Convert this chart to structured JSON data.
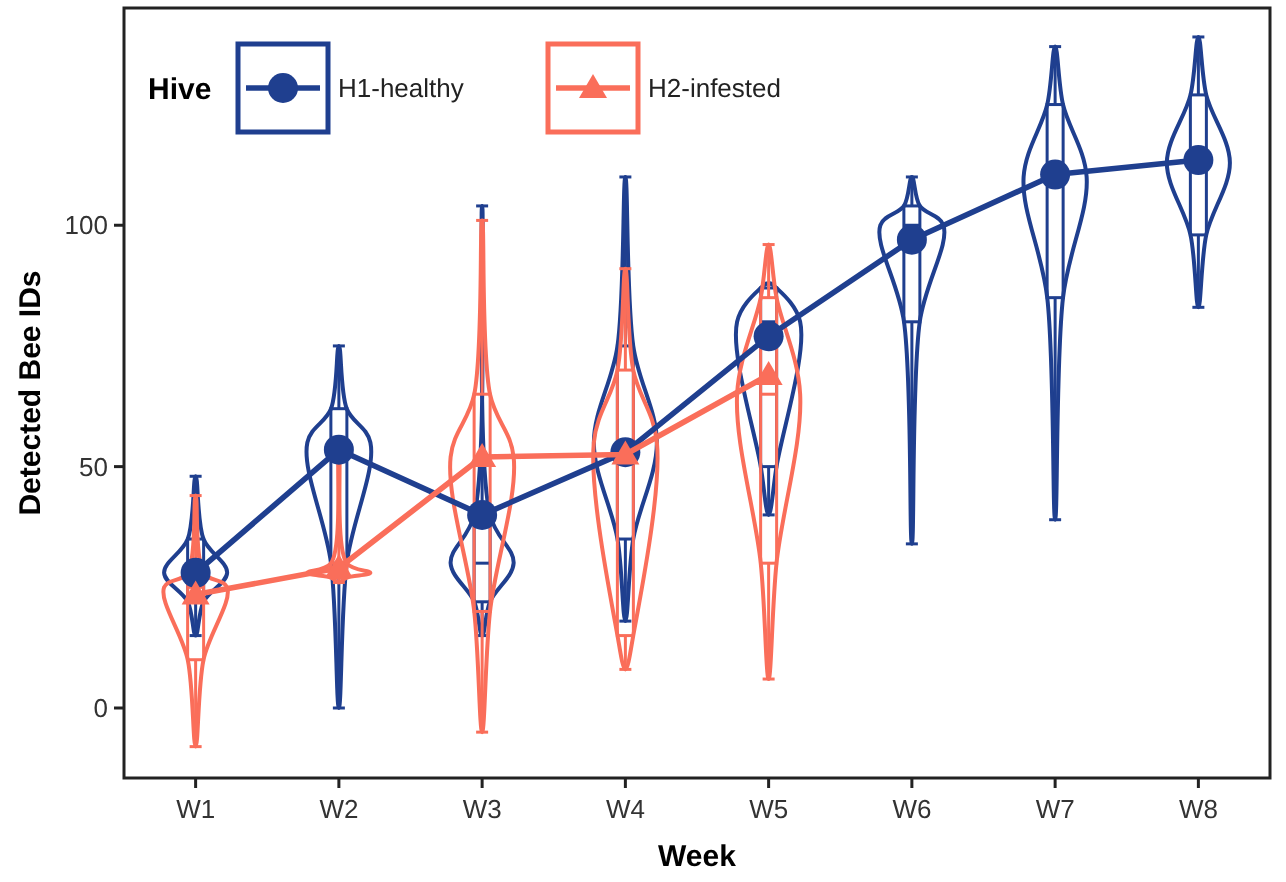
{
  "chart_data": {
    "type": "box",
    "xlabel": "Week",
    "ylabel": "Detected Bee IDs",
    "legend_title": "Hive",
    "legend": "top left",
    "grid": false,
    "categories": [
      "W1",
      "W2",
      "W3",
      "W4",
      "W5",
      "W6",
      "W7",
      "W8"
    ],
    "ylim": [
      -14.5,
      145
    ],
    "yticks": [
      0,
      50,
      100
    ],
    "series": [
      {
        "color": "#1f3f8f",
        "boxes": [
          {
            "low": 15,
            "q1": 22,
            "median": 28,
            "q3": 35,
            "high": 48
          },
          {
            "low": 0,
            "q1": 30,
            "median": 55,
            "q3": 62,
            "high": 75
          },
          {
            "low": 15,
            "q1": 22,
            "median": 30,
            "q3": 40,
            "high": 104
          },
          {
            "low": 18,
            "q1": 35,
            "median": 55,
            "q3": 75,
            "high": 110
          },
          {
            "low": 40,
            "q1": 50,
            "median": 80,
            "q3": 87,
            "high": 88
          },
          {
            "low": 34,
            "q1": 80,
            "median": 100,
            "q3": 104,
            "high": 110
          },
          {
            "low": 39,
            "q1": 85,
            "median": 110,
            "q3": 125,
            "high": 137
          },
          {
            "low": 83,
            "q1": 98,
            "median": 113,
            "q3": 127,
            "high": 139
          }
        ]
      },
      {
        "color": "#fa6e5a",
        "boxes": [
          {
            "low": -8,
            "q1": 10,
            "median": 25,
            "q3": 28,
            "high": 44
          },
          {
            "low": 26,
            "q1": 27,
            "median": 28,
            "q3": 30,
            "high": 52
          },
          {
            "low": -5,
            "q1": 20,
            "median": 52,
            "q3": 65,
            "high": 101
          },
          {
            "low": 8,
            "q1": 15,
            "median": 55,
            "q3": 70,
            "high": 91
          },
          {
            "low": 6,
            "q1": 30,
            "median": 65,
            "q3": 85,
            "high": 96
          },
          null,
          null,
          null
        ]
      },
      {
        "type": "line",
        "name": "H1-healthy",
        "color": "#1f3f8f",
        "marker": "circle",
        "values": [
          28,
          53.5,
          40,
          53,
          77,
          97,
          110.5,
          113.5
        ]
      },
      {
        "type": "line",
        "name": "H2-infested",
        "color": "#fa6e5a",
        "marker": "triangle",
        "values": [
          23.5,
          29,
          52,
          52.5,
          69,
          null,
          null,
          null
        ]
      }
    ]
  }
}
